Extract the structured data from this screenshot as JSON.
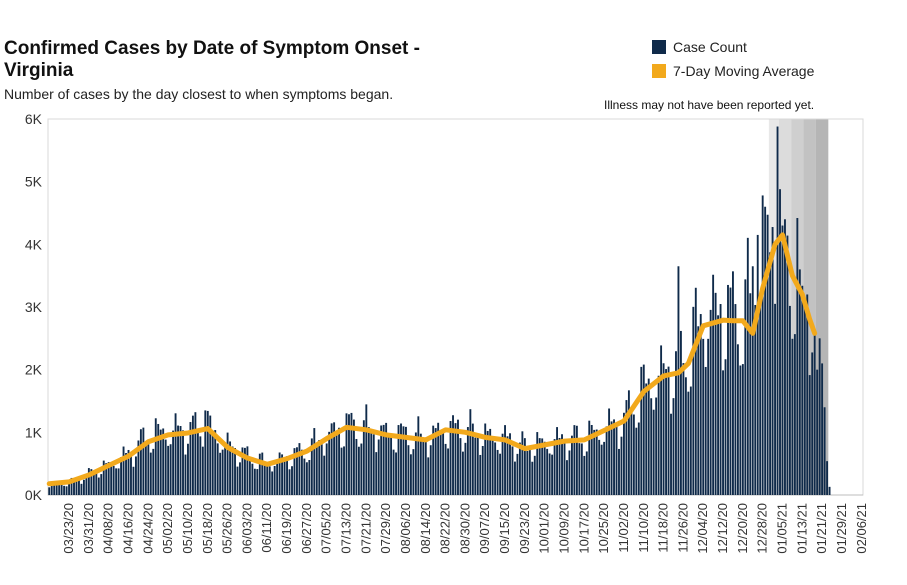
{
  "chart_data": {
    "type": "bar",
    "title": "Confirmed Cases by Date of Symptom Onset - Virginia",
    "subtitle": "Number of cases by the day closest to when symptoms began.",
    "note": "Illness may not have been reported yet.",
    "ylim": [
      0,
      6000
    ],
    "yticks": [
      0,
      1000,
      2000,
      3000,
      4000,
      5000,
      6000
    ],
    "ytick_labels": [
      "0K",
      "1K",
      "2K",
      "3K",
      "4K",
      "5K",
      "6K"
    ],
    "x_start": "2020-03-15",
    "x_end": "2021-02-07",
    "xtick_labels": [
      "03/23/20",
      "03/31/20",
      "04/08/20",
      "04/16/20",
      "04/24/20",
      "05/02/20",
      "05/10/20",
      "05/18/20",
      "05/26/20",
      "06/03/20",
      "06/11/20",
      "06/19/20",
      "06/27/20",
      "07/05/20",
      "07/13/20",
      "07/21/20",
      "07/29/20",
      "08/06/20",
      "08/14/20",
      "08/22/20",
      "08/30/20",
      "09/07/20",
      "09/15/20",
      "09/23/20",
      "10/01/20",
      "10/09/20",
      "10/17/20",
      "10/25/20",
      "11/02/20",
      "11/10/20",
      "11/18/20",
      "11/26/20",
      "12/04/20",
      "12/12/20",
      "12/20/20",
      "12/28/20",
      "01/05/21",
      "01/13/21",
      "01/21/21",
      "01/29/21",
      "02/06/21"
    ],
    "legend": [
      {
        "label": "Case Count",
        "color": "#0f2a4a"
      },
      {
        "label": "7-Day Moving Average",
        "color": "#f2a91c"
      }
    ],
    "shading": [
      {
        "from": "2020-12-31",
        "to": "2021-01-04",
        "color": "#e8e8e8"
      },
      {
        "from": "2021-01-04",
        "to": "2021-01-09",
        "color": "#dcdcdc"
      },
      {
        "from": "2021-01-09",
        "to": "2021-01-14",
        "color": "#cfcfcf"
      },
      {
        "from": "2021-01-14",
        "to": "2021-01-19",
        "color": "#c2c2c2"
      },
      {
        "from": "2021-01-19",
        "to": "2021-01-24",
        "color": "#b5b5b5"
      }
    ],
    "bar_keyframes": [
      [
        "2020-03-15",
        150
      ],
      [
        "2020-03-23",
        200
      ],
      [
        "2020-03-31",
        330
      ],
      [
        "2020-04-08",
        480
      ],
      [
        "2020-04-16",
        650
      ],
      [
        "2020-04-24",
        950
      ],
      [
        "2020-05-02",
        1020
      ],
      [
        "2020-05-10",
        1040
      ],
      [
        "2020-05-18",
        1080
      ],
      [
        "2020-05-26",
        800
      ],
      [
        "2020-06-03",
        620
      ],
      [
        "2020-06-11",
        500
      ],
      [
        "2020-06-19",
        600
      ],
      [
        "2020-06-27",
        720
      ],
      [
        "2020-07-05",
        940
      ],
      [
        "2020-07-13",
        1120
      ],
      [
        "2020-07-21",
        1060
      ],
      [
        "2020-07-29",
        990
      ],
      [
        "2020-08-06",
        960
      ],
      [
        "2020-08-14",
        890
      ],
      [
        "2020-08-22",
        1060
      ],
      [
        "2020-08-30",
        1040
      ],
      [
        "2020-09-07",
        940
      ],
      [
        "2020-09-15",
        900
      ],
      [
        "2020-09-23",
        760
      ],
      [
        "2020-10-01",
        830
      ],
      [
        "2020-10-09",
        880
      ],
      [
        "2020-10-17",
        900
      ],
      [
        "2020-10-25",
        1060
      ],
      [
        "2020-11-02",
        1200
      ],
      [
        "2020-11-10",
        1700
      ],
      [
        "2020-11-18",
        1950
      ],
      [
        "2020-11-26",
        2100
      ],
      [
        "2020-12-04",
        2850
      ],
      [
        "2020-12-12",
        2950
      ],
      [
        "2020-12-20",
        2850
      ],
      [
        "2020-12-28",
        3700
      ],
      [
        "2021-01-02",
        4300
      ],
      [
        "2021-01-05",
        4000
      ],
      [
        "2021-01-09",
        3500
      ],
      [
        "2021-01-13",
        3200
      ],
      [
        "2021-01-16",
        2900
      ],
      [
        "2021-01-18",
        2300
      ],
      [
        "2021-01-20",
        1600
      ],
      [
        "2021-01-22",
        500
      ],
      [
        "2021-01-23",
        50
      ]
    ],
    "bar_overrides": [
      [
        "2020-05-17",
        1350
      ],
      [
        "2020-11-24",
        3650
      ],
      [
        "2020-12-24",
        3650
      ],
      [
        "2020-12-26",
        4150
      ],
      [
        "2020-12-28",
        4780
      ],
      [
        "2020-12-29",
        4600
      ],
      [
        "2021-01-03",
        5880
      ],
      [
        "2021-01-04",
        4880
      ],
      [
        "2021-01-05",
        4300
      ],
      [
        "2021-01-06",
        4400
      ],
      [
        "2021-01-11",
        4420
      ],
      [
        "2021-01-12",
        3600
      ],
      [
        "2021-01-15",
        3200
      ],
      [
        "2021-01-19",
        2000
      ],
      [
        "2021-01-20",
        2500
      ],
      [
        "2021-01-21",
        2100
      ],
      [
        "2021-01-22",
        1400
      ],
      [
        "2021-01-23",
        540
      ],
      [
        "2021-01-24",
        130
      ]
    ],
    "moving_average": [
      [
        "2020-03-15",
        180
      ],
      [
        "2020-03-23",
        210
      ],
      [
        "2020-03-31",
        320
      ],
      [
        "2020-04-08",
        470
      ],
      [
        "2020-04-16",
        620
      ],
      [
        "2020-04-24",
        850
      ],
      [
        "2020-05-02",
        960
      ],
      [
        "2020-05-10",
        990
      ],
      [
        "2020-05-18",
        1060
      ],
      [
        "2020-05-26",
        760
      ],
      [
        "2020-06-03",
        590
      ],
      [
        "2020-06-11",
        490
      ],
      [
        "2020-06-19",
        580
      ],
      [
        "2020-06-27",
        700
      ],
      [
        "2020-07-05",
        900
      ],
      [
        "2020-07-13",
        1080
      ],
      [
        "2020-07-21",
        1040
      ],
      [
        "2020-07-29",
        960
      ],
      [
        "2020-08-06",
        920
      ],
      [
        "2020-08-14",
        880
      ],
      [
        "2020-08-22",
        1040
      ],
      [
        "2020-08-30",
        1000
      ],
      [
        "2020-09-07",
        920
      ],
      [
        "2020-09-15",
        880
      ],
      [
        "2020-09-23",
        740
      ],
      [
        "2020-10-01",
        800
      ],
      [
        "2020-10-09",
        860
      ],
      [
        "2020-10-17",
        880
      ],
      [
        "2020-10-25",
        1030
      ],
      [
        "2020-11-02",
        1180
      ],
      [
        "2020-11-10",
        1650
      ],
      [
        "2020-11-18",
        1900
      ],
      [
        "2020-11-24",
        1950
      ],
      [
        "2020-11-28",
        2100
      ],
      [
        "2020-12-04",
        2700
      ],
      [
        "2020-12-12",
        2790
      ],
      [
        "2020-12-16",
        2780
      ],
      [
        "2020-12-20",
        2780
      ],
      [
        "2020-12-24",
        2580
      ],
      [
        "2020-12-28",
        3300
      ],
      [
        "2021-01-02",
        4000
      ],
      [
        "2021-01-05",
        4150
      ],
      [
        "2021-01-09",
        3500
      ],
      [
        "2021-01-13",
        3200
      ],
      [
        "2021-01-16",
        2800
      ],
      [
        "2021-01-18",
        2580
      ]
    ]
  }
}
